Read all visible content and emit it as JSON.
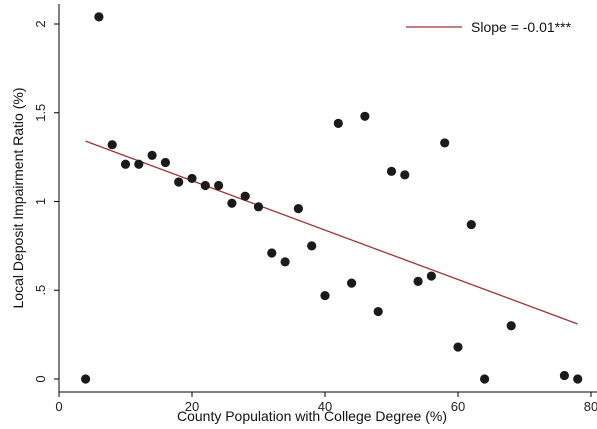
{
  "chart_data": {
    "type": "scatter",
    "title": "",
    "xlabel": "County Population with College Degree (%)",
    "ylabel": "Local Deposit Impairment Ratio (%)",
    "xlim": [
      0,
      80
    ],
    "ylim": [
      0,
      2.05
    ],
    "x_ticks": [
      0,
      20,
      40,
      60,
      80
    ],
    "x_tick_labels": [
      "0",
      "20",
      "40",
      "60",
      "80"
    ],
    "y_ticks": [
      0,
      0.5,
      1,
      1.5,
      2
    ],
    "y_tick_labels": [
      "0",
      ".5",
      "1",
      "1.5",
      "2"
    ],
    "grid": false,
    "legend_position": "top-right",
    "colors": {
      "points": "#1a1a1a",
      "fit_line": "#a03232"
    },
    "series": [
      {
        "kind": "scatter",
        "x": [
          4,
          6,
          8,
          10,
          12,
          14,
          16,
          18,
          20,
          22,
          24,
          26,
          28,
          30,
          32,
          34,
          36,
          38,
          40,
          42,
          44,
          46,
          48,
          50,
          52,
          54,
          56,
          58,
          60,
          62,
          64,
          68,
          76,
          78
        ],
        "y": [
          0.0,
          2.04,
          1.32,
          1.21,
          1.21,
          1.26,
          1.22,
          1.11,
          1.13,
          1.09,
          1.09,
          0.99,
          1.03,
          0.97,
          0.71,
          0.66,
          0.96,
          0.75,
          0.47,
          1.44,
          0.54,
          1.48,
          0.38,
          1.17,
          1.15,
          0.55,
          0.58,
          1.33,
          0.18,
          0.87,
          0.0,
          0.3,
          0.02,
          0.0
        ]
      },
      {
        "kind": "line",
        "name": "Slope = -0.01***",
        "x": [
          4,
          78
        ],
        "y": [
          1.34,
          0.31
        ]
      }
    ]
  }
}
